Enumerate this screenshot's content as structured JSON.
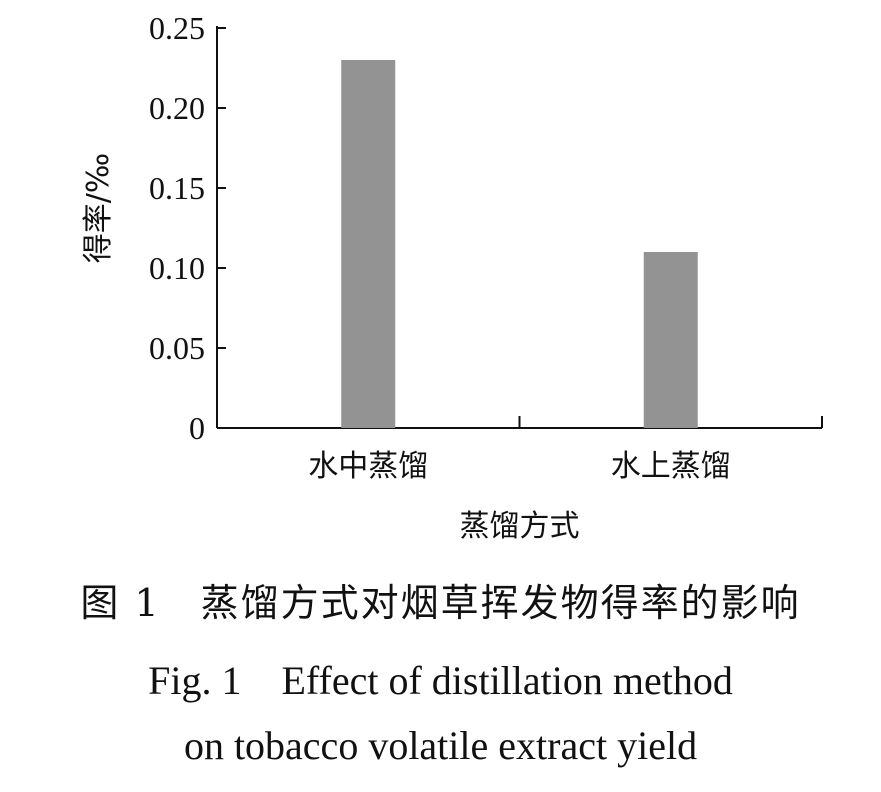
{
  "chart_data": {
    "type": "bar",
    "categories": [
      "水中蒸馏",
      "水上蒸馏"
    ],
    "values": [
      0.23,
      0.11
    ],
    "xlabel": "蒸馏方式",
    "ylabel": "得率/‰",
    "ylim": [
      0,
      0.25
    ],
    "yticks": [
      "0",
      "0.05",
      "0.10",
      "0.15",
      "0.20",
      "0.25"
    ],
    "bar_color": "#939393",
    "grid": false,
    "legend": "none"
  },
  "captions": {
    "cn": "图 1　蒸馏方式对烟草挥发物得率的影响",
    "en_line1": "Fig. 1　Effect of distillation method",
    "en_line2": "on tobacco volatile extract yield"
  }
}
